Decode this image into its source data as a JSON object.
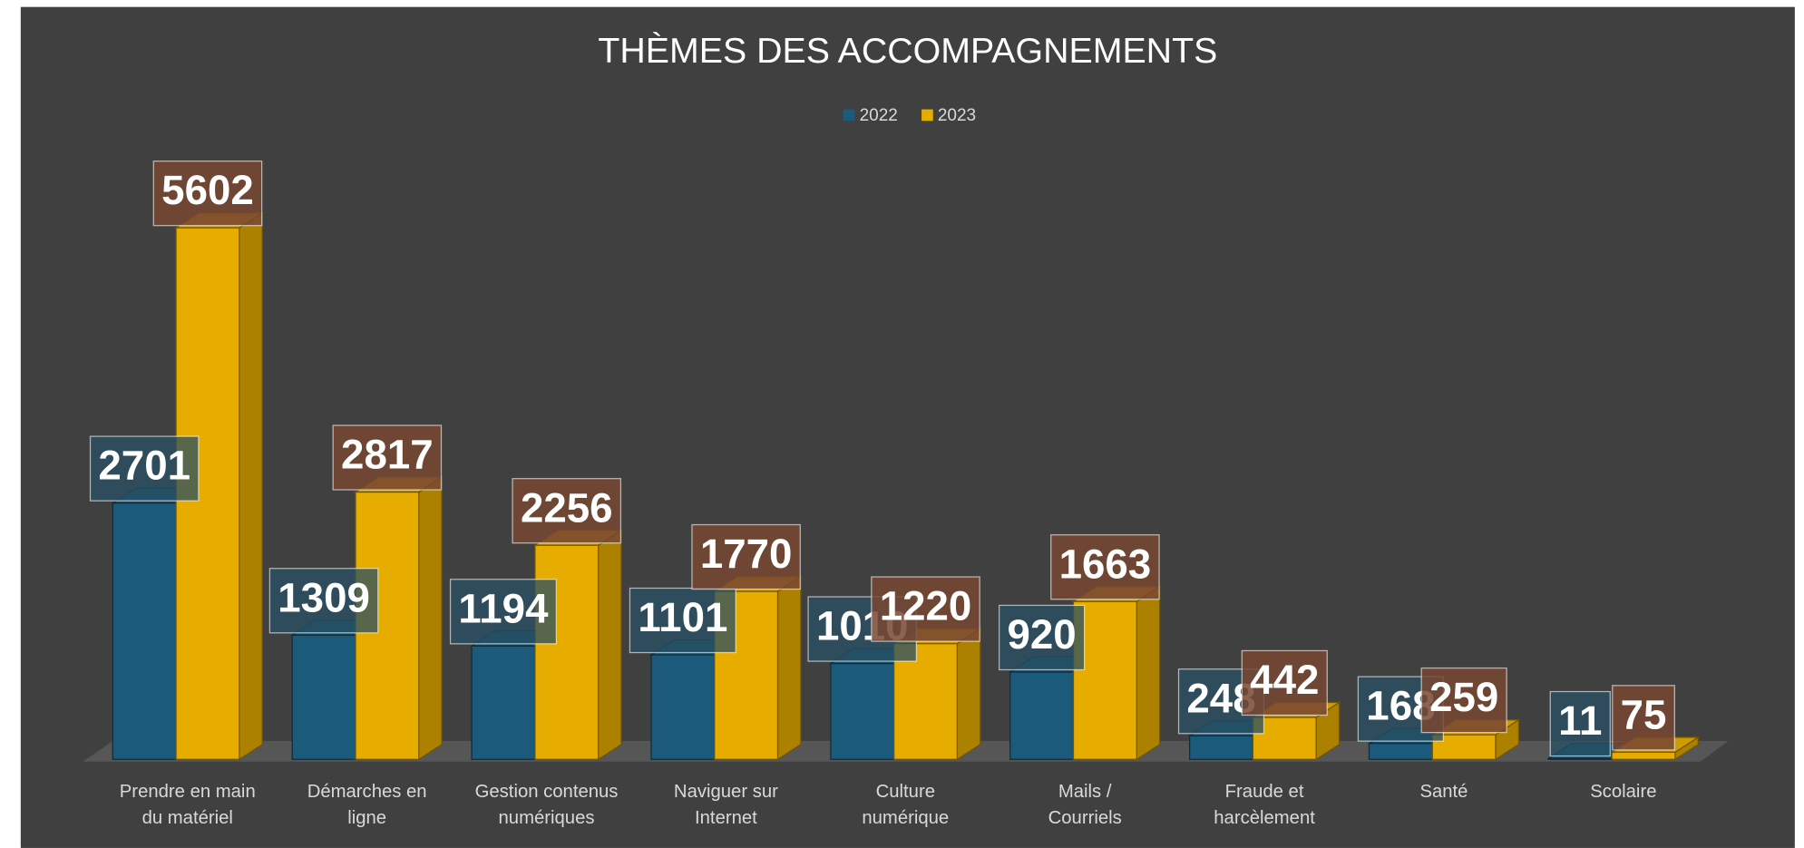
{
  "chart_data": {
    "type": "bar3d",
    "title": "THÈMES DES ACCOMPAGNEMENTS",
    "categories": [
      "Prendre en main du matériel",
      "Démarches en ligne",
      "Gestion contenus numériques",
      "Naviguer sur Internet",
      "Culture numérique",
      "Mails / Courriels",
      "Fraude et harcèlement",
      "Santé",
      "Scolaire"
    ],
    "series": [
      {
        "name": "2022",
        "color": "#1b5a7a",
        "values": [
          2701,
          1309,
          1194,
          1101,
          1010,
          920,
          248,
          168,
          11
        ]
      },
      {
        "name": "2023",
        "color": "#e6ac00",
        "values": [
          5602,
          2817,
          2256,
          1770,
          1220,
          1663,
          442,
          259,
          75
        ]
      }
    ],
    "legend": "top"
  }
}
